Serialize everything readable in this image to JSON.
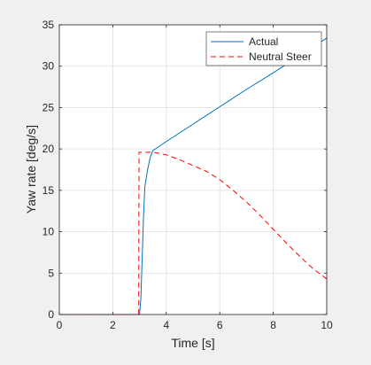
{
  "chart_data": {
    "type": "line",
    "title": "",
    "xlabel": "Time [s]",
    "ylabel": "Yaw rate [deg/s]",
    "xlim": [
      0,
      10
    ],
    "ylim": [
      0,
      35
    ],
    "xticks": [
      0,
      2,
      4,
      6,
      8,
      10
    ],
    "xtick_labels": [
      "0",
      "2",
      "4",
      "6",
      "8",
      "10"
    ],
    "yticks": [
      0,
      5,
      10,
      15,
      20,
      25,
      30,
      35
    ],
    "ytick_labels": [
      "0",
      "5",
      "10",
      "15",
      "20",
      "25",
      "30",
      "35"
    ],
    "grid": true,
    "legend": {
      "placement": "top-right",
      "entries": [
        "Actual",
        "Neutral Steer"
      ]
    },
    "series": [
      {
        "name": "Actual",
        "color": "#0072bd",
        "style": "solid",
        "x": [
          0,
          3.0,
          3.05,
          3.1,
          3.15,
          3.2,
          3.3,
          3.4,
          3.5,
          4,
          5,
          6,
          7,
          8,
          9,
          10
        ],
        "y": [
          0,
          0,
          2,
          7,
          12,
          15.5,
          17.5,
          19,
          19.8,
          20.9,
          23.0,
          25.1,
          27.2,
          29.2,
          31.3,
          33.4
        ]
      },
      {
        "name": "Neutral Steer",
        "color": "#ff0000",
        "style": "dashed",
        "x": [
          0,
          2.97,
          2.98,
          3.5,
          4,
          4.5,
          5,
          5.5,
          6,
          6.5,
          7,
          7.5,
          8,
          8.5,
          9,
          9.5,
          10
        ],
        "y": [
          0,
          0,
          19.6,
          19.6,
          19.3,
          18.7,
          18.0,
          17.3,
          16.3,
          15.0,
          13.6,
          12.0,
          10.3,
          8.6,
          7.0,
          5.5,
          4.3
        ]
      }
    ]
  }
}
